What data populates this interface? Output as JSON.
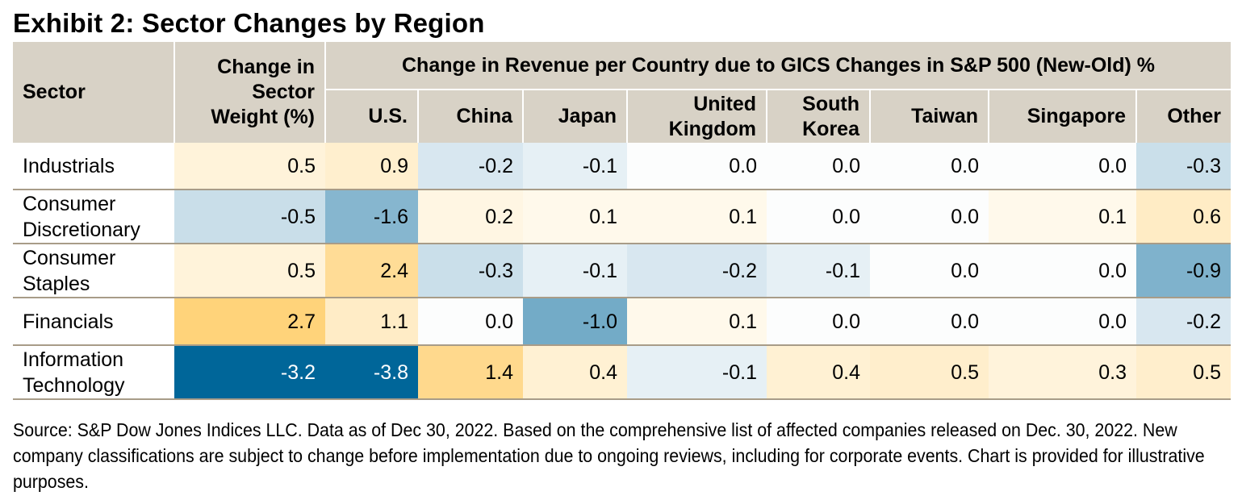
{
  "title": "Exhibit 2: Sector Changes by Region",
  "headers": {
    "sector": "Sector",
    "weight": "Change in Sector Weight (%)",
    "group": "Change in Revenue per Country due to GICS Changes in S&P 500 (New-Old) %",
    "countries": [
      "U.S.",
      "China",
      "Japan",
      "United Kingdom",
      "South Korea",
      "Taiwan",
      "Singapore",
      "Other"
    ]
  },
  "colors": {
    "header_bg": "#D8D2C6",
    "positive_strong": "#FFCC66",
    "negative_strong": "#006699",
    "row_divider": "#A89C88"
  },
  "chart_data": {
    "type": "heatmap",
    "title": "Exhibit 2: Sector Changes by Region",
    "columns": [
      "Change in Sector Weight (%)",
      "U.S.",
      "China",
      "Japan",
      "United Kingdom",
      "South Korea",
      "Taiwan",
      "Singapore",
      "Other"
    ],
    "rows": [
      {
        "sector": "Industrials",
        "values": [
          "0.5",
          "0.9",
          "-0.2",
          "-0.1",
          "0.0",
          "0.0",
          "0.0",
          "0.0",
          "-0.3"
        ]
      },
      {
        "sector": "Consumer Discretionary",
        "values": [
          "-0.5",
          "-1.6",
          "0.2",
          "0.1",
          "0.1",
          "0.0",
          "0.0",
          "0.1",
          "0.6"
        ]
      },
      {
        "sector": "Consumer Staples",
        "values": [
          "0.5",
          "2.4",
          "-0.3",
          "-0.1",
          "-0.2",
          "-0.1",
          "0.0",
          "0.0",
          "-0.9"
        ]
      },
      {
        "sector": "Financials",
        "values": [
          "2.7",
          "1.1",
          "0.0",
          "-1.0",
          "0.1",
          "0.0",
          "0.0",
          "0.0",
          "-0.2"
        ]
      },
      {
        "sector": "Information Technology",
        "values": [
          "-3.2",
          "-3.8",
          "1.4",
          "0.4",
          "-0.1",
          "0.4",
          "0.5",
          "0.3",
          "0.5"
        ]
      }
    ]
  },
  "footer": "Source: S&P Dow Jones Indices LLC. Data as of Dec 30, 2022. Based on the comprehensive list of affected companies released on Dec. 30, 2022. New company classifications are subject to change before implementation due to ongoing reviews, including for corporate events. Chart is provided for illustrative purposes."
}
